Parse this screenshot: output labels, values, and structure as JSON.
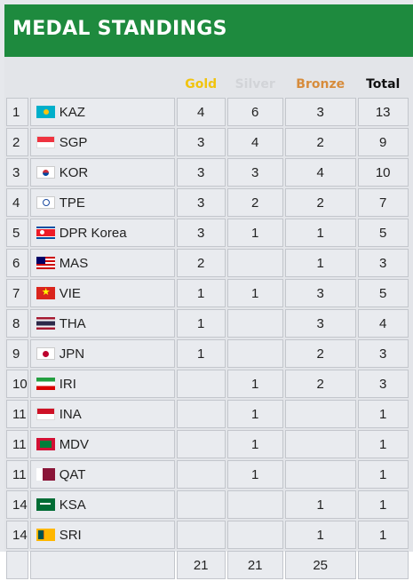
{
  "header": {
    "title": "MEDAL STANDINGS"
  },
  "columns": {
    "gold": "Gold",
    "silver": "Silver",
    "bronze": "Bronze",
    "total": "Total"
  },
  "rows": [
    {
      "rank": "1",
      "country": "KAZ",
      "flag": "kazakhstan-flag-icon",
      "gold": "4",
      "silver": "6",
      "bronze": "3",
      "total": "13"
    },
    {
      "rank": "2",
      "country": "SGP",
      "flag": "singapore-flag-icon",
      "gold": "3",
      "silver": "4",
      "bronze": "2",
      "total": "9"
    },
    {
      "rank": "3",
      "country": "KOR",
      "flag": "korea-flag-icon",
      "gold": "3",
      "silver": "3",
      "bronze": "4",
      "total": "10"
    },
    {
      "rank": "4",
      "country": "TPE",
      "flag": "chinese-taipei-flag-icon",
      "gold": "3",
      "silver": "2",
      "bronze": "2",
      "total": "7"
    },
    {
      "rank": "5",
      "country": "DPR Korea",
      "flag": "dpr-korea-flag-icon",
      "gold": "3",
      "silver": "1",
      "bronze": "1",
      "total": "5"
    },
    {
      "rank": "6",
      "country": "MAS",
      "flag": "malaysia-flag-icon",
      "gold": "2",
      "silver": "",
      "bronze": "1",
      "total": "3"
    },
    {
      "rank": "7",
      "country": "VIE",
      "flag": "vietnam-flag-icon",
      "gold": "1",
      "silver": "1",
      "bronze": "3",
      "total": "5"
    },
    {
      "rank": "8",
      "country": "THA",
      "flag": "thailand-flag-icon",
      "gold": "1",
      "silver": "",
      "bronze": "3",
      "total": "4"
    },
    {
      "rank": "9",
      "country": "JPN",
      "flag": "japan-flag-icon",
      "gold": "1",
      "silver": "",
      "bronze": "2",
      "total": "3"
    },
    {
      "rank": "10",
      "country": "IRI",
      "flag": "iran-flag-icon",
      "gold": "",
      "silver": "1",
      "bronze": "2",
      "total": "3"
    },
    {
      "rank": "11",
      "country": "INA",
      "flag": "indonesia-flag-icon",
      "gold": "",
      "silver": "1",
      "bronze": "",
      "total": "1"
    },
    {
      "rank": "11",
      "country": "MDV",
      "flag": "maldives-flag-icon",
      "gold": "",
      "silver": "1",
      "bronze": "",
      "total": "1"
    },
    {
      "rank": "11",
      "country": "QAT",
      "flag": "qatar-flag-icon",
      "gold": "",
      "silver": "1",
      "bronze": "",
      "total": "1"
    },
    {
      "rank": "14",
      "country": "KSA",
      "flag": "saudi-arabia-flag-icon",
      "gold": "",
      "silver": "",
      "bronze": "1",
      "total": "1"
    },
    {
      "rank": "14",
      "country": "SRI",
      "flag": "sri-lanka-flag-icon",
      "gold": "",
      "silver": "",
      "bronze": "1",
      "total": "1"
    }
  ],
  "totals": {
    "gold": "21",
    "silver": "21",
    "bronze": "25",
    "total": ""
  },
  "colors": {
    "header": "#1e8a3e",
    "gold": "#f1c40f",
    "silver": "#d2d4d8",
    "bronze": "#d78c3c"
  }
}
